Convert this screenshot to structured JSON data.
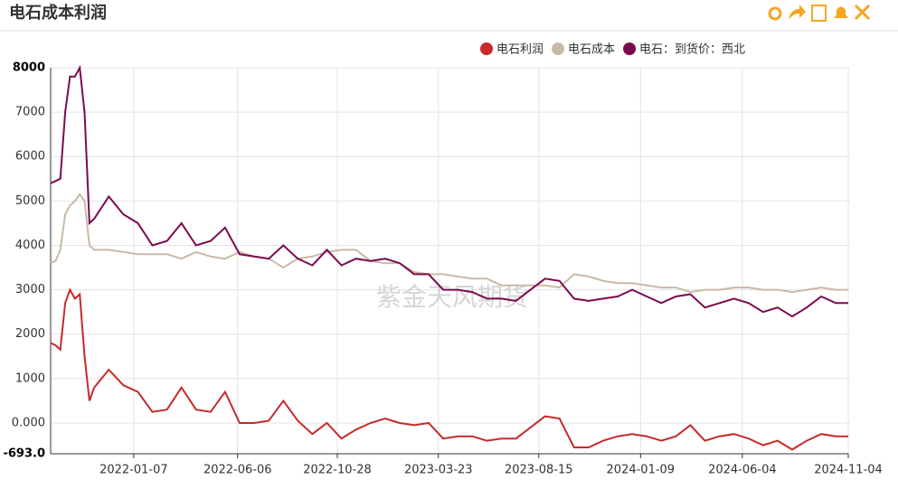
{
  "chart_data": {
    "type": "line",
    "title": "电石成本利润",
    "watermark": "紫金天风期货",
    "x": [
      "2021-09-09",
      "2021-09-16",
      "2021-09-23",
      "2021-09-30",
      "2021-10-07",
      "2021-10-14",
      "2021-10-21",
      "2021-10-28",
      "2021-11-04",
      "2021-11-11",
      "2021-12-02",
      "2021-12-23",
      "2022-01-13",
      "2022-02-03",
      "2022-02-24",
      "2022-03-17",
      "2022-04-07",
      "2022-04-28",
      "2022-05-19",
      "2022-06-09",
      "2022-06-30",
      "2022-07-21",
      "2022-08-11",
      "2022-09-01",
      "2022-09-22",
      "2022-10-13",
      "2022-11-03",
      "2022-11-24",
      "2022-12-15",
      "2023-01-05",
      "2023-01-26",
      "2023-02-16",
      "2023-03-09",
      "2023-03-30",
      "2023-04-20",
      "2023-05-11",
      "2023-06-01",
      "2023-06-22",
      "2023-07-13",
      "2023-08-03",
      "2023-08-24",
      "2023-09-14",
      "2023-10-05",
      "2023-10-26",
      "2023-11-16",
      "2023-12-07",
      "2023-12-28",
      "2024-01-18",
      "2024-02-08",
      "2024-02-29",
      "2024-03-21",
      "2024-04-11",
      "2024-05-02",
      "2024-05-23",
      "2024-06-13",
      "2024-07-04",
      "2024-07-25",
      "2024-08-15",
      "2024-09-05",
      "2024-09-26",
      "2024-10-17",
      "2024-11-04"
    ],
    "series": [
      {
        "name": "电石利润",
        "color": "#c62a2a",
        "values": [
          1800,
          1750,
          1650,
          2700,
          3000,
          2800,
          2900,
          1500,
          500,
          800,
          1200,
          850,
          700,
          250,
          300,
          800,
          300,
          250,
          700,
          0,
          0,
          50,
          500,
          50,
          -250,
          0,
          -350,
          -150,
          0,
          100,
          0,
          -50,
          0,
          -350,
          -300,
          -300,
          -400,
          -350,
          -350,
          -100,
          150,
          100,
          -550,
          -550,
          -400,
          -300,
          -250,
          -300,
          -400,
          -300,
          -50,
          -400,
          -300,
          -250,
          -350,
          -500,
          -400,
          -600,
          -400,
          -250,
          -300,
          -300
        ]
      },
      {
        "name": "电石成本",
        "color": "#c9b9a7",
        "values": [
          3600,
          3650,
          3900,
          4700,
          4900,
          5000,
          5150,
          5000,
          4000,
          3900,
          3900,
          3850,
          3800,
          3800,
          3800,
          3700,
          3850,
          3750,
          3700,
          3850,
          3750,
          3700,
          3500,
          3700,
          3750,
          3850,
          3900,
          3900,
          3650,
          3600,
          3600,
          3400,
          3350,
          3350,
          3300,
          3250,
          3250,
          3100,
          3100,
          3100,
          3100,
          3050,
          3350,
          3300,
          3200,
          3150,
          3150,
          3100,
          3050,
          3050,
          2950,
          3000,
          3000,
          3050,
          3050,
          3000,
          3000,
          2950,
          3000,
          3050,
          3000,
          3000
        ]
      },
      {
        "name": "电石：到货价：西北",
        "color": "#7b0a4f",
        "values": [
          5400,
          5450,
          5500,
          7000,
          7800,
          7800,
          8000,
          7000,
          4500,
          4600,
          5100,
          4700,
          4500,
          4000,
          4100,
          4500,
          4000,
          4100,
          4400,
          3800,
          3750,
          3700,
          4000,
          3700,
          3550,
          3900,
          3550,
          3700,
          3650,
          3700,
          3600,
          3350,
          3350,
          3000,
          3000,
          2950,
          2800,
          2800,
          2750,
          3000,
          3250,
          3200,
          2800,
          2750,
          2800,
          2850,
          3000,
          2850,
          2700,
          2850,
          2900,
          2600,
          2700,
          2800,
          2700,
          2500,
          2600,
          2400,
          2600,
          2850,
          2700,
          2700
        ]
      }
    ],
    "xlim": [
      "2021-09-09",
      "2024-11-04"
    ],
    "xticks": [
      "2022-01-07",
      "2022-06-06",
      "2022-10-28",
      "2023-03-23",
      "2023-08-15",
      "2024-01-09",
      "2024-06-04",
      "2024-11-04"
    ],
    "ylim": [
      -693,
      8000
    ],
    "yticks": [
      {
        "value": -693,
        "label": "-693.0"
      },
      {
        "value": 0,
        "label": "0.000"
      },
      1000,
      2000,
      3000,
      4000,
      5000,
      6000,
      7000,
      8000
    ],
    "grid": true,
    "legend": "top-right"
  }
}
